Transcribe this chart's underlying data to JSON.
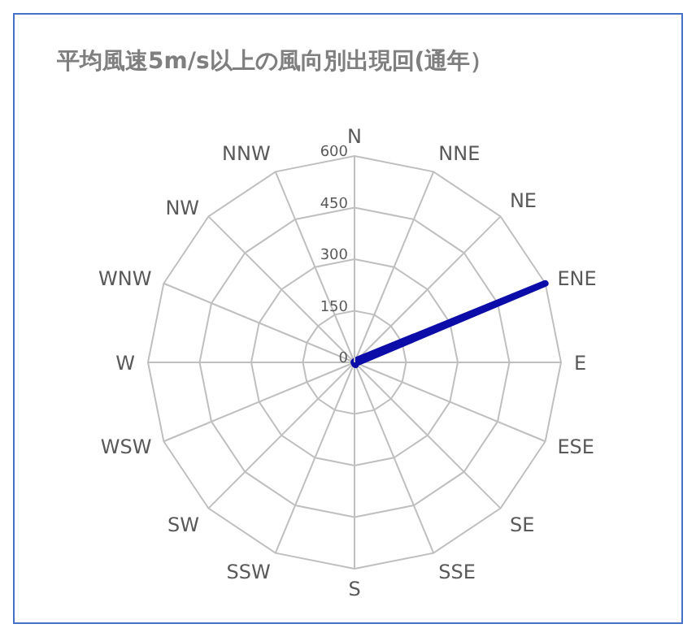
{
  "chart_data": {
    "type": "radar",
    "title": "平均風速5m/s以上の風向別出現回(通年）",
    "categories": [
      "N",
      "NNE",
      "NE",
      "ENE",
      "E",
      "ESE",
      "SE",
      "SSE",
      "S",
      "SSW",
      "SW",
      "WSW",
      "W",
      "WNW",
      "NW",
      "NNW"
    ],
    "series": [
      {
        "color": "#0c0ca8",
        "values": [
          2,
          5,
          10,
          600,
          10,
          5,
          5,
          8,
          5,
          2,
          2,
          2,
          2,
          2,
          2,
          2
        ]
      }
    ],
    "ylim": [
      0,
      600
    ],
    "yticks": [
      0,
      150,
      300,
      450,
      600
    ],
    "grid": true,
    "legend": false,
    "marker": "none"
  }
}
